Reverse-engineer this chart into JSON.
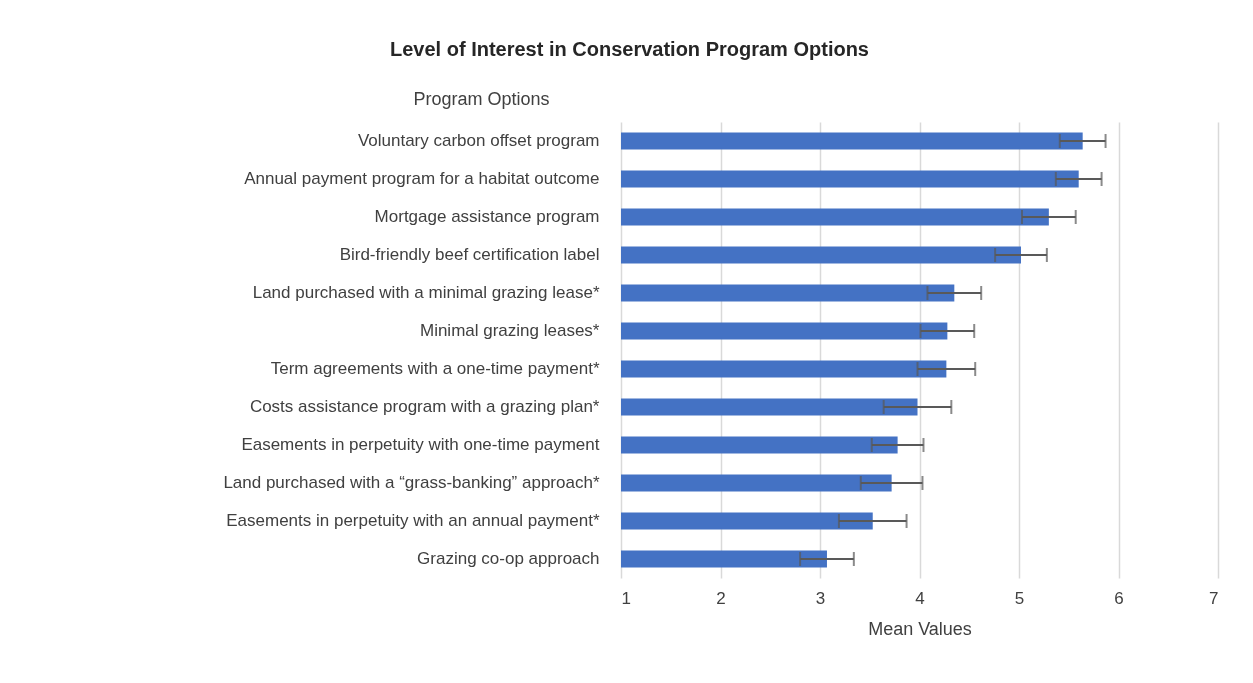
{
  "chart_data": {
    "type": "bar",
    "orientation": "horizontal",
    "title": "Level of Interest in Conservation Program Options",
    "ylabel": "Program Options",
    "xlabel": "Mean Values",
    "categories": [
      "Voluntary carbon offset program",
      "Annual payment program for a habitat outcome ",
      "Mortgage assistance program ",
      "Bird-friendly beef certification label",
      "Land purchased with a minimal grazing lease*",
      "Minimal grazing leases*",
      "Term agreements with a one-time payment*",
      "Costs assistance program with a grazing plan*",
      "Easements in perpetuity with one-time payment",
      "Land purchased with a “grass-banking” approach*",
      "Easements in perpetuity with an annual payment*",
      "Grazing co-op approach"
    ],
    "series": [
      {
        "color": "#4472c4",
        "values": [
          5.64,
          5.6,
          5.3,
          5.02,
          4.35,
          4.28,
          4.27,
          3.98,
          3.78,
          3.72,
          3.53,
          3.07
        ],
        "errors": [
          0.23,
          0.23,
          0.27,
          0.26,
          0.27,
          0.27,
          0.29,
          0.34,
          0.26,
          0.31,
          0.34,
          0.27
        ]
      }
    ],
    "xlim": [
      1,
      7
    ],
    "xticks": [
      1,
      2,
      3,
      4,
      5,
      6,
      7
    ],
    "grid": "x"
  }
}
